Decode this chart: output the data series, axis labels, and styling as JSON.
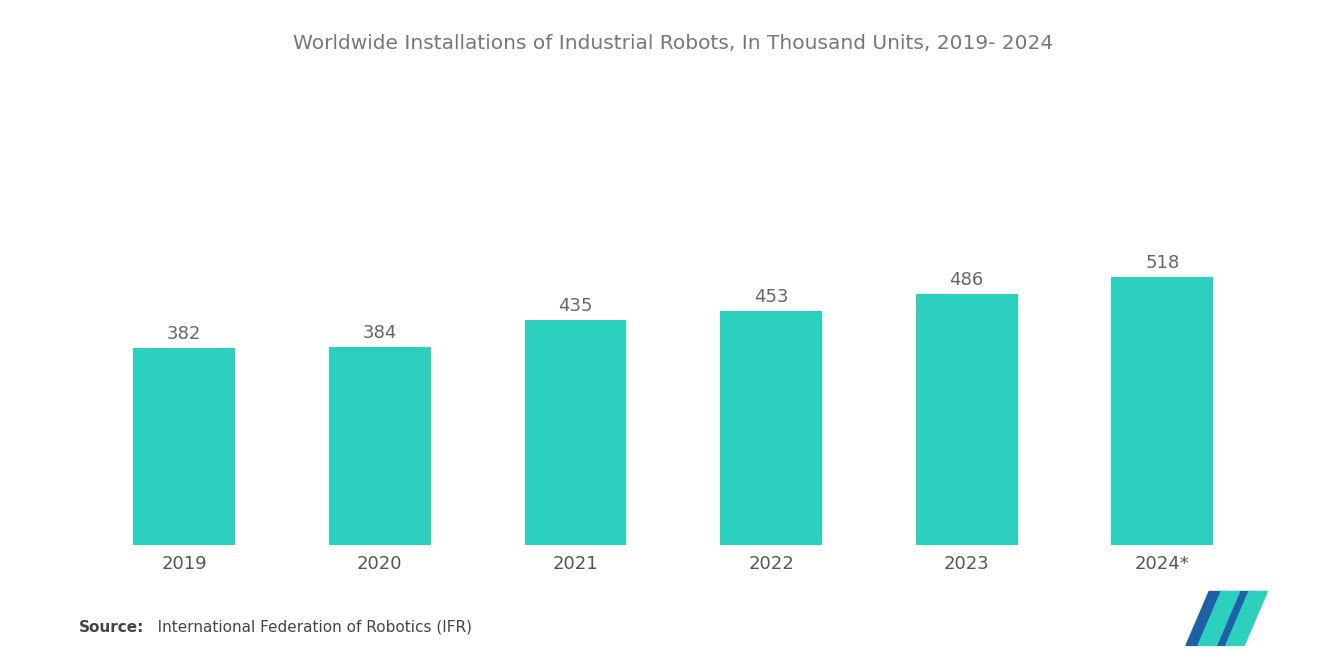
{
  "title": "Worldwide Installations of Industrial Robots, In Thousand Units, 2019- 2024",
  "categories": [
    "2019",
    "2020",
    "2021",
    "2022",
    "2023",
    "2024*"
  ],
  "values": [
    382,
    384,
    435,
    453,
    486,
    518
  ],
  "bar_color": "#2DCFBF",
  "background_color": "#ffffff",
  "title_fontsize": 14.5,
  "label_fontsize": 13,
  "tick_fontsize": 13,
  "source_bold": "Source:",
  "source_rest": "   International Federation of Robotics (IFR)",
  "source_fontsize": 11,
  "ylim": [
    0,
    900
  ],
  "bar_width": 0.52,
  "title_color": "#777777",
  "tick_color": "#555555",
  "value_label_color": "#666666",
  "logo_blue": "#1e5fa6",
  "logo_teal": "#2dcfbf"
}
